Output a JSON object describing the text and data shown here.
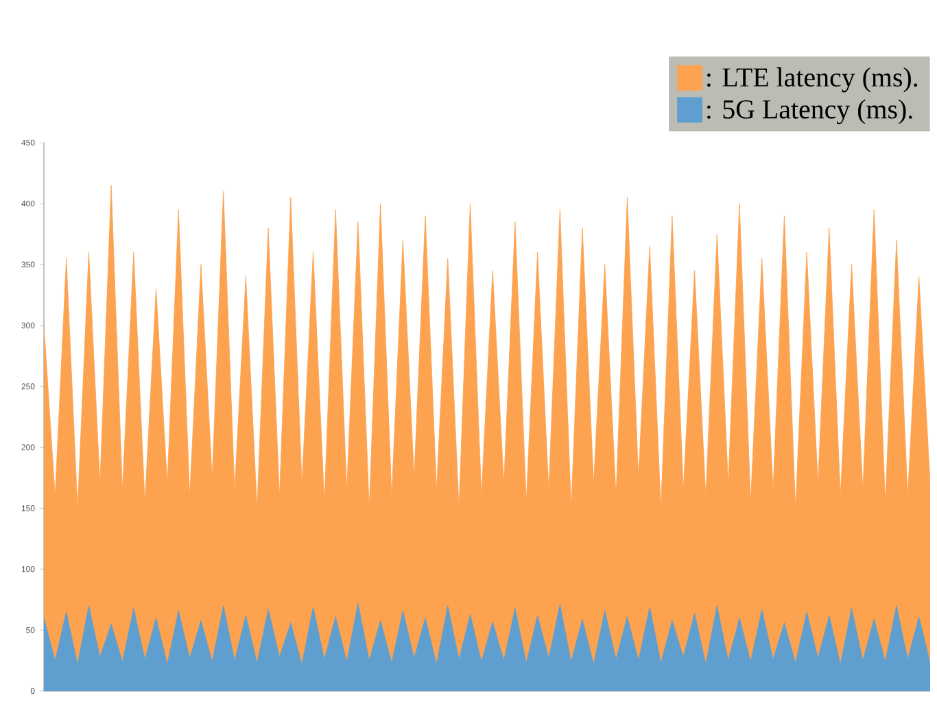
{
  "chart_data": {
    "type": "area",
    "categories": [
      null,
      null,
      null,
      null,
      null,
      null,
      null,
      null,
      null,
      null,
      null,
      null,
      null,
      null,
      null,
      null,
      null,
      null,
      null,
      null,
      null,
      null,
      null,
      null,
      null,
      null,
      null,
      null,
      null,
      null,
      null,
      null,
      null,
      null,
      null,
      null,
      null,
      null,
      null,
      null,
      null,
      null,
      null,
      null,
      null,
      null,
      null,
      null,
      null,
      null,
      null,
      null,
      null,
      null,
      null,
      null,
      null,
      null,
      null,
      null,
      null,
      null,
      null,
      null,
      null,
      null,
      null,
      null,
      null,
      null,
      null,
      null,
      null,
      null,
      null,
      null,
      null,
      null,
      null,
      null
    ],
    "series": [
      {
        "name": ": LTE latency (ms).",
        "color": "#fda24f",
        "values": [
          300,
          160,
          355,
          150,
          360,
          170,
          415,
          165,
          360,
          155,
          330,
          170,
          395,
          160,
          350,
          175,
          410,
          165,
          340,
          150,
          380,
          160,
          405,
          170,
          360,
          155,
          395,
          165,
          385,
          150,
          400,
          160,
          370,
          175,
          390,
          165,
          355,
          150,
          400,
          160,
          345,
          170,
          385,
          155,
          360,
          165,
          395,
          150,
          380,
          170,
          350,
          160,
          405,
          175,
          365,
          150,
          390,
          165,
          345,
          160,
          375,
          170,
          400,
          155,
          355,
          165,
          390,
          150,
          360,
          170,
          380,
          160,
          350,
          165,
          395,
          155,
          370,
          160,
          340,
          170
        ]
      },
      {
        "name": ": 5G Latency (ms).",
        "color": "#5f9fcf",
        "values": [
          60,
          25,
          65,
          22,
          70,
          28,
          55,
          24,
          68,
          26,
          60,
          22,
          66,
          27,
          58,
          24,
          70,
          25,
          62,
          23,
          67,
          28,
          56,
          22,
          69,
          26,
          61,
          24,
          72,
          25,
          58,
          23,
          66,
          27,
          60,
          22,
          70,
          26,
          63,
          24,
          57,
          25,
          68,
          23,
          62,
          27,
          71,
          24,
          59,
          22,
          66,
          26,
          61,
          25,
          69,
          23,
          58,
          28,
          64,
          22,
          70,
          25,
          60,
          24,
          67,
          26,
          56,
          23,
          65,
          27,
          62,
          22,
          68,
          25,
          59,
          24,
          70,
          26,
          61,
          23
        ]
      }
    ],
    "ylim": [
      0,
      450
    ],
    "yticks": [
      0,
      50,
      100,
      150,
      200,
      250,
      300,
      350,
      400,
      450
    ],
    "legend": "top right",
    "tick_labels": "y"
  }
}
